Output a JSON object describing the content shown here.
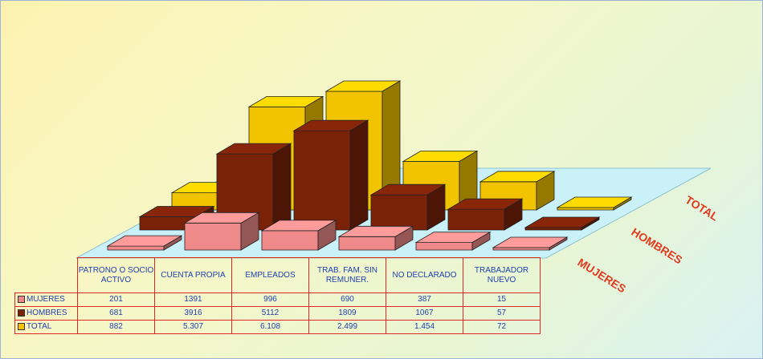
{
  "chart_data": {
    "type": "bar",
    "variant": "3d-grouped",
    "categories": [
      "PATRONO O SOCIO ACTIVO",
      "CUENTA PROPIA",
      "EMPLEADOS",
      "TRAB. FAM. SIN REMUNER.",
      "NO DECLARADO",
      "TRABAJADOR NUEVO"
    ],
    "series": [
      {
        "name": "MUJERES",
        "color": "#f08a8a",
        "values": [
          201,
          1391,
          996,
          690,
          387,
          15
        ],
        "display": [
          "201",
          "1391",
          "996",
          "690",
          "387",
          "15"
        ]
      },
      {
        "name": "HOMBRES",
        "color": "#7a2208",
        "values": [
          681,
          3916,
          5112,
          1809,
          1067,
          57
        ],
        "display": [
          "681",
          "3916",
          "5112",
          "1809",
          "1067",
          "57"
        ]
      },
      {
        "name": "TOTAL",
        "color": "#f2c400",
        "values": [
          882,
          5307,
          6108,
          2499,
          1454,
          72
        ],
        "display": [
          "882",
          "5.307",
          "6.108",
          "2.499",
          "1.454",
          "72"
        ]
      }
    ],
    "legend": "data-table",
    "grid": false
  }
}
